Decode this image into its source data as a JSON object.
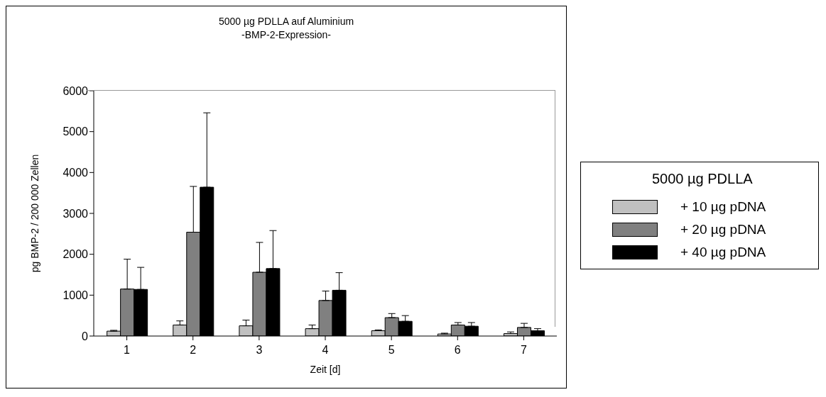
{
  "chart_data": {
    "type": "bar",
    "title": "5000 µg PDLLA auf Aluminium",
    "subtitle": "-BMP-2-Expression-",
    "xlabel": "Zeit [d]",
    "ylabel": "pg BMP-2 / 200 000 Zellen",
    "legend_title": "5000 µg PDLLA",
    "categories": [
      "1",
      "2",
      "3",
      "4",
      "5",
      "6",
      "7"
    ],
    "series": [
      {
        "name": "+ 10 µg pDNA",
        "color": "#c0c0c0",
        "values": [
          120,
          270,
          250,
          180,
          130,
          50,
          60
        ],
        "errors": [
          [
            120,
            140
          ],
          [
            270,
            370
          ],
          [
            250,
            390
          ],
          [
            180,
            270
          ],
          [
            130,
            150
          ],
          [
            50,
            70
          ],
          [
            60,
            100
          ]
        ]
      },
      {
        "name": "+ 20 µg pDNA",
        "color": "#808080",
        "values": [
          1150,
          2540,
          1560,
          870,
          450,
          270,
          210
        ],
        "errors": [
          [
            1150,
            1880
          ],
          [
            2540,
            3660
          ],
          [
            1560,
            2290
          ],
          [
            870,
            1100
          ],
          [
            450,
            550
          ],
          [
            270,
            330
          ],
          [
            210,
            310
          ]
        ]
      },
      {
        "name": "+ 40 µg pDNA",
        "color": "#000000",
        "values": [
          1140,
          3640,
          1650,
          1120,
          360,
          240,
          130
        ],
        "errors": [
          [
            1140,
            1680
          ],
          [
            3640,
            5460
          ],
          [
            1650,
            2580
          ],
          [
            1120,
            1550
          ],
          [
            360,
            500
          ],
          [
            240,
            330
          ],
          [
            130,
            180
          ]
        ]
      }
    ],
    "ylim": [
      0,
      6000
    ],
    "yticks": [
      0,
      1000,
      2000,
      3000,
      4000,
      5000,
      6000
    ],
    "legend": "right"
  }
}
